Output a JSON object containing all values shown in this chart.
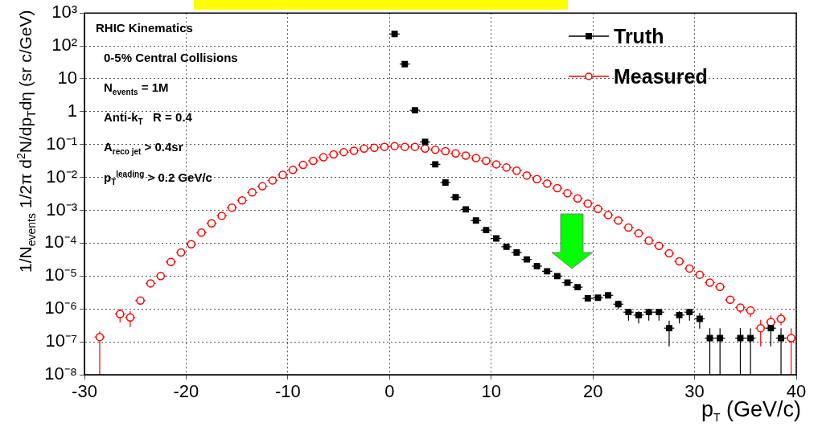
{
  "chart_data": {
    "type": "scatter",
    "xlabel": "p$_{T}$ (GeV/c)",
    "ylabel": "1/N$_{events}$ 1/2π d$^{2}$N/dp$_{T}$dη (sr c/GeV)",
    "annotations": [
      "RHIC Kinematics",
      "0-5% Central Collisions",
      "N$_{events}$ = 1M",
      "Anti-k$_{T}$   R = 0.4",
      "A$_{reco jet}$ > 0.4sr",
      "p$_{T}$$^{leading}$ > 0.2 GeV/c"
    ],
    "log": "y",
    "grid": true,
    "legend": "top right",
    "xlim": [
      -30,
      40
    ],
    "xticks": [
      -30,
      -20,
      -10,
      0,
      10,
      20,
      30,
      40
    ],
    "ylim": [
      1e-08,
      1000
    ],
    "yticks": [
      {
        "value": 1000,
        "label": "10³"
      },
      {
        "value": 100,
        "label": "10²"
      },
      {
        "value": 10,
        "label": "10"
      },
      {
        "value": 1,
        "label": "1"
      },
      {
        "value": 0.1,
        "label": "10⁻¹"
      },
      {
        "value": 0.01,
        "label": "10⁻²"
      },
      {
        "value": 0.001,
        "label": "10⁻³"
      },
      {
        "value": 0.0001,
        "label": "10⁻⁴"
      },
      {
        "value": 1e-05,
        "label": "10⁻⁵"
      },
      {
        "value": 1e-06,
        "label": "10⁻⁶"
      },
      {
        "value": 1e-07,
        "label": "10⁻⁷"
      },
      {
        "value": 1e-08,
        "label": "10⁻⁸"
      }
    ],
    "series": [
      {
        "name": "Truth",
        "color": "#000000",
        "marker": "square",
        "x": [
          0.5,
          1.5,
          2.5,
          3.5,
          4.5,
          5.5,
          6.5,
          7.5,
          8.5,
          9.5,
          10.5,
          11.5,
          12.5,
          13.5,
          14.5,
          15.5,
          16.5,
          17.5,
          18.5,
          19.5,
          20.5,
          21.5,
          22.5,
          23.5,
          24.5,
          25.5,
          26.5,
          27.5,
          28.5,
          29.5,
          30.5,
          31.5,
          32.5,
          34.5,
          35.5,
          37.5,
          38.5
        ],
        "values": [
          230,
          28,
          1.1,
          0.12,
          0.025,
          0.007,
          0.0025,
          0.00107,
          0.00049,
          0.00025,
          0.00014,
          7.8e-05,
          5.2e-05,
          3.2e-05,
          2e-05,
          1.4e-05,
          1e-05,
          6.3e-06,
          4.6e-06,
          2.1e-06,
          2.2e-06,
          2.6e-06,
          1.4e-06,
          8e-07,
          6.5e-07,
          8e-07,
          8e-07,
          2.6e-07,
          6.5e-07,
          8e-07,
          5e-07,
          1.3e-07,
          1.3e-07,
          1.3e-07,
          1.3e-07,
          2.6e-07,
          1.3e-07
        ],
        "errors": [
          null,
          null,
          null,
          null,
          null,
          null,
          null,
          null,
          null,
          null,
          null,
          null,
          null,
          null,
          null,
          null,
          null,
          null,
          null,
          null,
          null,
          null,
          [
            1e-06,
            1.8e-06
          ],
          [
            4.4e-07,
            1e-06
          ],
          [
            3.6e-07,
            8.6e-07
          ],
          [
            4.4e-07,
            1e-06
          ],
          [
            4.4e-07,
            1e-06
          ],
          [
            7.3e-08,
            4.4e-07
          ],
          [
            3.6e-07,
            8.6e-07
          ],
          [
            4.4e-07,
            1e-06
          ],
          [
            2.5e-07,
            7.5e-07
          ],
          [
            1e-08,
            2.6e-07
          ],
          [
            1e-08,
            2.6e-07
          ],
          [
            1e-08,
            2.6e-07
          ],
          [
            1e-08,
            2.6e-07
          ],
          [
            7.3e-08,
            3.9e-07
          ],
          [
            1e-08,
            2.6e-07
          ]
        ],
        "xerrors": [
          0.5,
          0.5,
          0.5,
          0.5,
          0.5,
          0.5,
          0.5,
          0.5,
          0.5,
          0.5,
          0.5,
          0.5,
          0.5,
          0.5,
          0.5,
          0.5,
          0.5,
          0.5,
          0.5,
          0.5,
          0.5,
          0.5,
          0.5,
          0.5,
          0.5,
          0.5,
          0.5,
          0.5,
          0.5,
          0.5,
          0.5,
          0.5,
          0.5,
          0.5,
          0.5,
          0.5,
          0.5
        ]
      },
      {
        "name": "Measured",
        "color": "#ff0000",
        "marker": "circle",
        "x": [
          -28.5,
          -26.5,
          -25.5,
          -24.5,
          -23.5,
          -22.5,
          -21.5,
          -20.5,
          -19.5,
          -18.5,
          -17.5,
          -16.5,
          -15.5,
          -14.5,
          -13.5,
          -12.5,
          -11.5,
          -10.5,
          -9.5,
          -8.5,
          -7.5,
          -6.5,
          -5.5,
          -4.5,
          -3.5,
          -2.5,
          -1.5,
          -0.5,
          0.5,
          1.5,
          2.5,
          3.5,
          4.5,
          5.5,
          6.5,
          7.5,
          8.5,
          9.5,
          10.5,
          11.5,
          12.5,
          13.5,
          14.5,
          15.5,
          16.5,
          17.5,
          18.5,
          19.5,
          20.5,
          21.5,
          22.5,
          23.5,
          24.5,
          25.5,
          26.5,
          27.5,
          28.5,
          29.5,
          30.5,
          31.5,
          32.5,
          33.5,
          34.5,
          35.5,
          36.5,
          37.5,
          38.5,
          39.5
        ],
        "values": [
          1.4e-07,
          7e-07,
          5.5e-07,
          1.8e-06,
          6e-06,
          1e-05,
          2.7e-05,
          5.2e-05,
          9.3e-05,
          0.00021,
          0.0004,
          0.00068,
          0.0012,
          0.002,
          0.0035,
          0.0054,
          0.0081,
          0.012,
          0.017,
          0.024,
          0.032,
          0.041,
          0.05,
          0.059,
          0.065,
          0.075,
          0.08,
          0.085,
          0.09,
          0.085,
          0.085,
          0.075,
          0.069,
          0.063,
          0.054,
          0.046,
          0.039,
          0.032,
          0.025,
          0.02,
          0.016,
          0.0115,
          0.0089,
          0.0065,
          0.0047,
          0.0033,
          0.0023,
          0.0016,
          0.0011,
          0.00072,
          0.00049,
          0.0003,
          0.0002,
          0.00012,
          8.3e-05,
          4.9e-05,
          2.8e-05,
          1.7e-05,
          1.1e-05,
          6.3e-06,
          4.7e-06,
          1.9e-06,
          1.1e-06,
          9e-07,
          2.6e-07,
          4e-07,
          5e-07,
          1.3e-07
        ],
        "errors": [
          [
            1e-08,
            2.1e-07
          ],
          [
            3.9e-07,
            1e-06
          ],
          [
            2.8e-07,
            8.7e-07
          ],
          null,
          null,
          null,
          null,
          null,
          null,
          null,
          null,
          null,
          null,
          null,
          null,
          null,
          null,
          null,
          null,
          null,
          null,
          null,
          null,
          null,
          null,
          null,
          null,
          null,
          null,
          null,
          null,
          null,
          null,
          null,
          null,
          null,
          null,
          null,
          null,
          null,
          null,
          null,
          null,
          null,
          null,
          null,
          null,
          null,
          null,
          null,
          null,
          null,
          null,
          null,
          null,
          null,
          null,
          null,
          null,
          null,
          null,
          null,
          [
            7.5e-07,
            1.4e-06
          ],
          [
            5.6e-07,
            1.2e-06
          ],
          [
            7.3e-08,
            4.7e-07
          ],
          [
            2.4e-07,
            6.4e-07
          ],
          [
            3.2e-07,
            7.5e-07
          ],
          [
            1e-08,
            2.6e-07
          ]
        ],
        "xerrors": [
          0.5,
          0.5,
          0.5,
          0.5,
          0.5,
          0.5,
          0.5,
          0.5,
          0.5,
          0.5,
          0.5,
          0.5,
          0.5,
          0.5,
          0.5,
          0.5,
          0.5,
          0.5,
          0.5,
          0.5,
          0.5,
          0.5,
          0.5,
          0.5,
          0.5,
          0.5,
          0.5,
          0.5,
          0.5,
          0.5,
          0.5,
          0.5,
          0.5,
          0.5,
          0.5,
          0.5,
          0.5,
          0.5,
          0.5,
          0.5,
          0.5,
          0.5,
          0.5,
          0.5,
          0.5,
          0.5,
          0.5,
          0.5,
          0.5,
          0.5,
          0.5,
          0.5,
          0.5,
          0.5,
          0.5,
          0.5,
          0.5,
          0.5,
          0.5,
          0.5,
          0.5,
          0.5,
          0.5,
          0.5,
          0.5,
          0.5,
          0.5,
          0.5
        ]
      }
    ]
  }
}
